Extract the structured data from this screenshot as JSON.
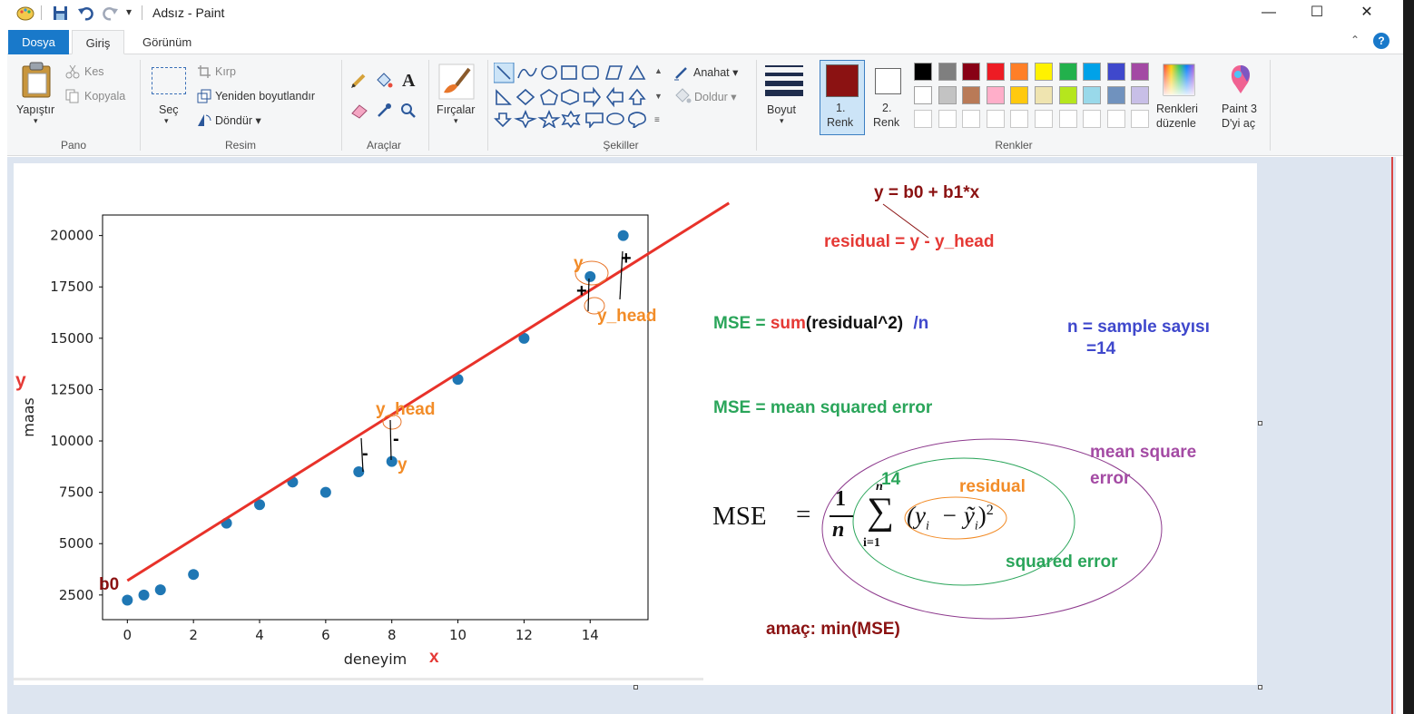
{
  "window": {
    "title": "Adsız - Paint",
    "minimize": "—",
    "maximize": "☐",
    "close": "✕"
  },
  "tabs": {
    "file": "Dosya",
    "home": "Giriş",
    "view": "Görünüm"
  },
  "ribbon": {
    "clipboard": {
      "paste": "Yapıştır",
      "cut": "Kes",
      "copy": "Kopyala",
      "label": "Pano"
    },
    "image": {
      "select": "Seç",
      "crop": "Kırp",
      "resize": "Yeniden boyutlandır",
      "rotate": "Döndür ▾",
      "label": "Resim"
    },
    "tools": {
      "label": "Araçlar"
    },
    "brushes": {
      "label": "Fırçalar"
    },
    "shapes": {
      "outline": "Anahat ▾",
      "fill": "Doldur ▾",
      "label": "Şekiller"
    },
    "size": {
      "label": "Boyut"
    },
    "colors": {
      "color1": "1.",
      "color1_sub": "Renk",
      "color2": "2.",
      "color2_sub": "Renk",
      "edit": "Renkleri",
      "edit_sub": "düzenle",
      "paint3d": "Paint 3",
      "paint3d_sub": "D'yi aç",
      "label": "Renkler",
      "color1_value": "#8b1212",
      "color2_value": "#ffffff",
      "palette_row1": [
        "#000000",
        "#7f7f7f",
        "#880015",
        "#ed1c24",
        "#ff7f27",
        "#fff200",
        "#22b14c",
        "#00a2e8",
        "#3f48cc",
        "#a349a4"
      ],
      "palette_row2": [
        "#ffffff",
        "#c3c3c3",
        "#b97a57",
        "#ffaec9",
        "#ffc90e",
        "#efe4b0",
        "#b5e61d",
        "#99d9ea",
        "#7092be",
        "#c8bfe7"
      ]
    }
  },
  "annotations": {
    "line_eq": "y = b0 + b1*x",
    "residual_eq_label": "residual = ",
    "residual_eq_y": "y",
    "residual_eq_rest": " - y_head",
    "mse_label": "MSE = ",
    "mse_sum": "sum",
    "mse_residual": "(residual^2)",
    "mse_div": "/n",
    "n_def": "n = sample sayısı",
    "n_val": "=14",
    "mse_def": "MSE = mean squared error",
    "mean_square": "mean square",
    "error_word": "error",
    "residual_word": "residual",
    "squared_error": "squared error",
    "fourteen": "14",
    "goal": "amaç: min(MSE)",
    "b0": "b0",
    "y_axis_mark": "y",
    "x_axis_mark": "x",
    "y_head_1": "y_head",
    "y_head_2": "y_head",
    "y_1": "y",
    "y_2": "y",
    "plus_1": "+",
    "plus_2": "+",
    "minus_1": "-",
    "minus_2": "-"
  },
  "formula": {
    "lhs": "MSE",
    "eq": "=",
    "num": "1",
    "den": "n",
    "sum_top": "n",
    "sum_sym": "∑",
    "sum_bottom": "i=1",
    "body": "(y",
    "body_sub_i": "i",
    "minus": "−",
    "yhat": "ỹ",
    "yhat_sub": "i",
    "close": ")",
    "power": "2"
  },
  "chart_data": {
    "type": "scatter",
    "xlabel": "deneyim",
    "ylabel": "maas",
    "xlim": [
      -0.75,
      15.75
    ],
    "ylim": [
      1300,
      21000
    ],
    "xticks": [
      0,
      2,
      4,
      6,
      8,
      10,
      12,
      14
    ],
    "yticks": [
      2500,
      5000,
      7500,
      10000,
      12500,
      15000,
      17500,
      20000
    ],
    "points": [
      [
        0.0,
        2250
      ],
      [
        0.5,
        2500
      ],
      [
        1.0,
        2750
      ],
      [
        2.0,
        3500
      ],
      [
        3.0,
        6000
      ],
      [
        4.0,
        6900
      ],
      [
        5.0,
        8000
      ],
      [
        6.0,
        7500
      ],
      [
        7.0,
        8500
      ],
      [
        8.0,
        9000
      ],
      [
        10.0,
        13000
      ],
      [
        12.0,
        15000
      ],
      [
        14.0,
        18000
      ],
      [
        15.0,
        20000
      ]
    ],
    "fit_line": {
      "b0": 3200,
      "b1": 1010,
      "x_start": 0,
      "x_end": 18.2
    },
    "point_color": "#1f77b4",
    "line_color": "#e8322a"
  }
}
